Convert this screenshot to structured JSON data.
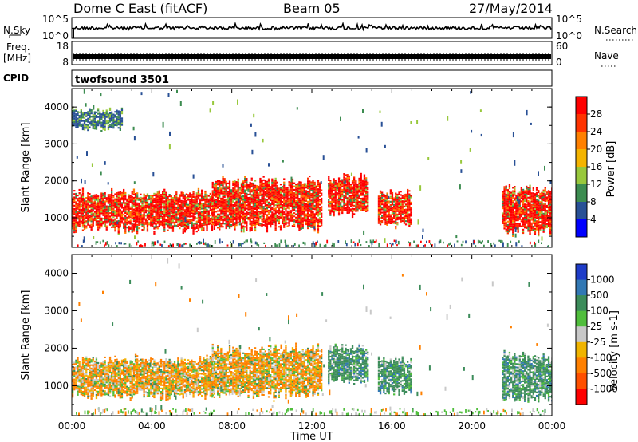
{
  "header": {
    "station": "Dome C East (fitACF)",
    "beam": "Beam 05",
    "date": "27/May/2014"
  },
  "strip": {
    "nsky_label": "N.Sky",
    "nsky_ticks": [
      "10^5",
      "10^0"
    ],
    "nsearch_label": "N.Search",
    "nsearch_ticks": [
      "10^5",
      "10^0"
    ],
    "freq_label": "Freq.",
    "freq_unit": "[MHz]",
    "freq_ticks": [
      "18",
      "8"
    ],
    "nave_label": "Nave",
    "nave_ticks": [
      "60",
      "0"
    ],
    "cpid_label": "CPID",
    "cpid_value": "twofsound 3501"
  },
  "chart_data": [
    {
      "type": "heatmap",
      "title": "Power",
      "ylabel": "Slant Range [km]",
      "ylim": [
        200,
        4500
      ],
      "yticks": [
        "1000",
        "2000",
        "3000",
        "4000"
      ],
      "xlabel": "Time UT",
      "xlim": [
        "00:00",
        "24:00"
      ],
      "xticks": [
        "00:00",
        "04:00",
        "08:00",
        "12:00",
        "16:00",
        "20:00",
        "00:00"
      ],
      "colorbar": {
        "label": "Power [dB]",
        "ticks": [
          "28",
          "24",
          "20",
          "16",
          "12",
          "8",
          "4"
        ],
        "colors": [
          "#ff0000",
          "#ff3300",
          "#ff8000",
          "#f4b400",
          "#98c83c",
          "#3c8c50",
          "#285096",
          "#0000ff"
        ]
      },
      "regions": [
        {
          "t": [
            0.0,
            7.0
          ],
          "range_km": [
            650,
            1700
          ],
          "level": "high"
        },
        {
          "t": [
            7.0,
            12.5
          ],
          "range_km": [
            700,
            2000
          ],
          "level": "high"
        },
        {
          "t": [
            12.8,
            14.8
          ],
          "range_km": [
            1100,
            2100
          ],
          "level": "high"
        },
        {
          "t": [
            15.3,
            17.0
          ],
          "range_km": [
            800,
            1700
          ],
          "level": "high"
        },
        {
          "t": [
            21.5,
            24.0
          ],
          "range_km": [
            600,
            1800
          ],
          "level": "high"
        },
        {
          "t": [
            0.0,
            2.5
          ],
          "range_km": [
            3400,
            3900
          ],
          "level": "low"
        }
      ]
    },
    {
      "type": "heatmap",
      "title": "Velocity",
      "ylabel": "Slant Range [km]",
      "ylim": [
        200,
        4500
      ],
      "yticks": [
        "1000",
        "2000",
        "3000",
        "4000"
      ],
      "xlabel": "Time UT",
      "xlim": [
        "00:00",
        "24:00"
      ],
      "xticks": [
        "00:00",
        "04:00",
        "08:00",
        "12:00",
        "16:00",
        "20:00",
        "00:00"
      ],
      "colorbar": {
        "label": "Velocity [m s-1]",
        "ticks": [
          "1000",
          "500",
          "100",
          "25",
          "-25",
          "-100",
          "-500",
          "-1000"
        ],
        "colors": [
          "#1e3cc8",
          "#3278b4",
          "#3c8c5a",
          "#50be3c",
          "#c8c8c8",
          "#f0b400",
          "#ff8000",
          "#ff5000",
          "#ff0000"
        ]
      },
      "regions": [
        {
          "t": [
            0.0,
            7.0
          ],
          "range_km": [
            700,
            1700
          ],
          "velocity": "-100"
        },
        {
          "t": [
            7.0,
            12.5
          ],
          "range_km": [
            700,
            2000
          ],
          "velocity": "-100"
        },
        {
          "t": [
            12.8,
            14.8
          ],
          "range_km": [
            1100,
            2000
          ],
          "velocity": "100"
        },
        {
          "t": [
            15.3,
            17.0
          ],
          "range_km": [
            800,
            1700
          ],
          "velocity": "100"
        },
        {
          "t": [
            21.5,
            24.0
          ],
          "range_km": [
            600,
            1800
          ],
          "velocity": "100"
        }
      ]
    }
  ]
}
